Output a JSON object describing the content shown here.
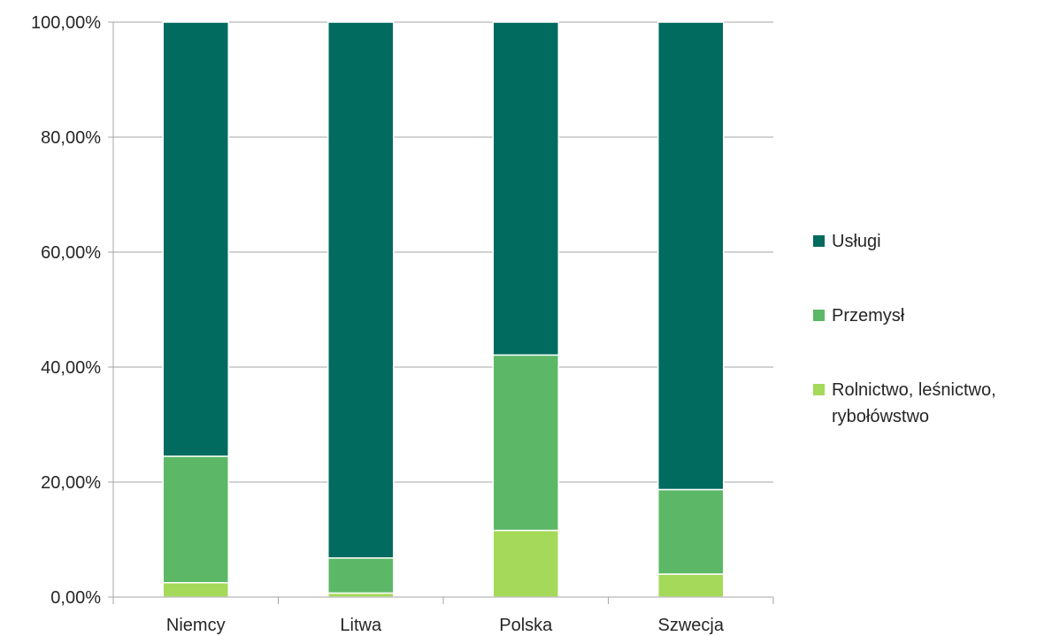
{
  "chart_data": {
    "type": "bar",
    "stacked": true,
    "categories": [
      "Niemcy",
      "Litwa",
      "Polska",
      "Szwecja"
    ],
    "series": [
      {
        "name": "Rolnictwo, leśnictwo, rybołówstwo",
        "color": "#a5d95a",
        "values": [
          2.5,
          0.7,
          11.6,
          4.0
        ]
      },
      {
        "name": "Przemysł",
        "color": "#5cb867",
        "values": [
          22.0,
          6.1,
          30.5,
          14.7
        ]
      },
      {
        "name": "Usługi",
        "color": "#006b5e",
        "values": [
          75.5,
          93.2,
          57.9,
          81.3
        ]
      }
    ],
    "yticks": [
      "0,00%",
      "20,00%",
      "40,00%",
      "60,00%",
      "80,00%",
      "100,00%"
    ],
    "ylim": [
      0,
      100
    ],
    "grid": true,
    "legend_position": "right",
    "legend_order": [
      "Usługi",
      "Przemysł",
      "Rolnictwo, leśnictwo, rybołówstwo"
    ],
    "legend_lines": {
      "Usługi": [
        "Usługi"
      ],
      "Przemysł": [
        "Przemysł"
      ],
      "Rolnictwo, leśnictwo, rybołówstwo": [
        "Rolnictwo, leśnictwo,",
        "rybołówstwo"
      ]
    }
  }
}
